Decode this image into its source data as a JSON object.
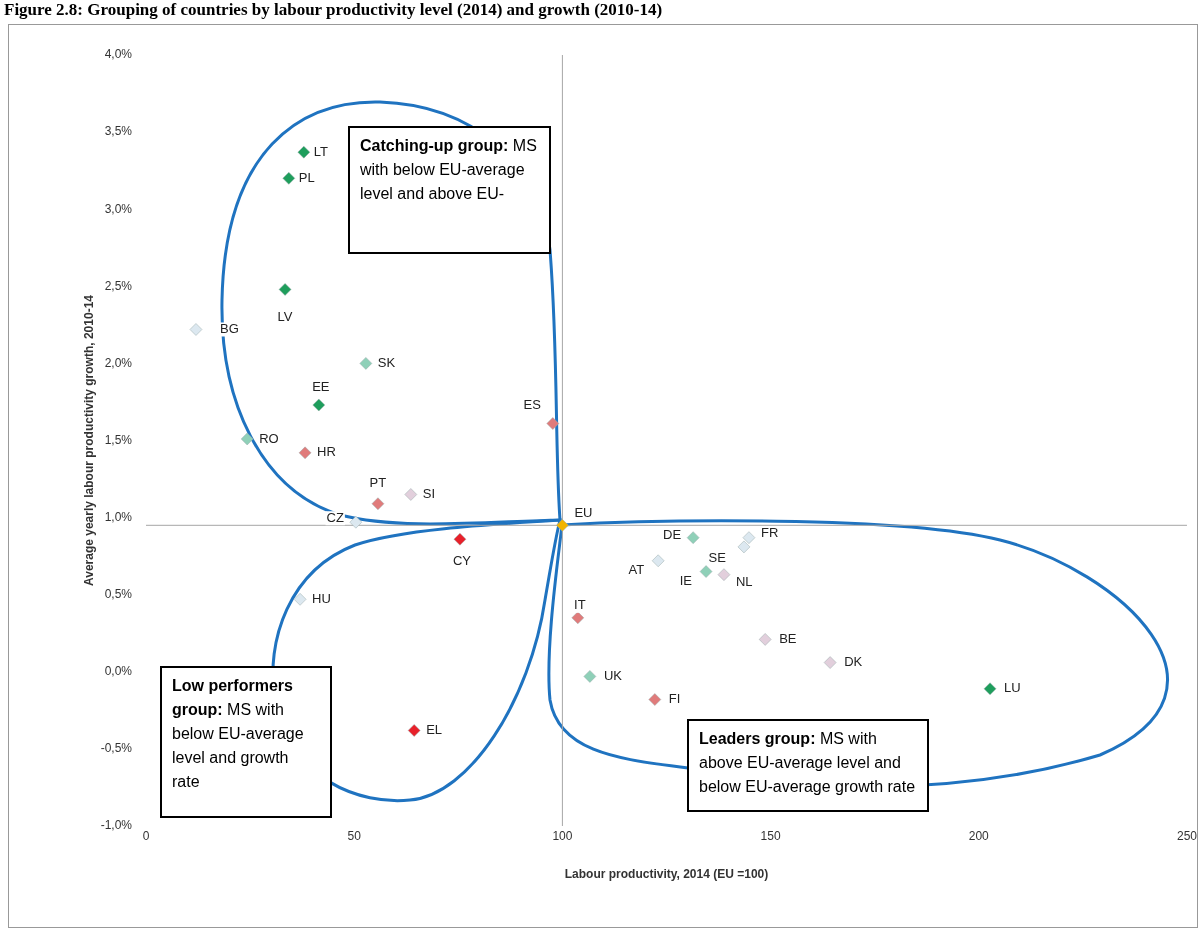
{
  "chart_data": {
    "type": "scatter",
    "title": "Figure 2.8: Grouping of countries by labour productivity level (2014) and growth (2010-14)",
    "xlabel": "Labour productivity, 2014 (EU =100)",
    "ylabel": "Average yearly labour productivity growth, 2010-14",
    "x": [
      37.9,
      34.3,
      33.4,
      12.0,
      52.8,
      41.5,
      24.3,
      38.2,
      97.7,
      55.7,
      63.6,
      50.4,
      100,
      75.4,
      37.0,
      64.4,
      131.4,
      144.8,
      143.6,
      123.0,
      134.5,
      138.8,
      103.7,
      148.7,
      164.3,
      106.6,
      122.2,
      202.7
    ],
    "values": [
      3.37,
      3.2,
      2.48,
      2.22,
      2.0,
      1.73,
      1.51,
      1.42,
      1.61,
      1.09,
      1.15,
      0.97,
      0.95,
      0.86,
      0.47,
      -0.38,
      0.87,
      0.87,
      0.81,
      0.72,
      0.65,
      0.63,
      0.35,
      0.21,
      0.06,
      -0.03,
      -0.18,
      -0.11
    ],
    "colors": [
      "#1e9e5c",
      "#1e9e5c",
      "#1e9e5c",
      "#dce8f0",
      "#8fd0b8",
      "#1e9e5c",
      "#8fd0b8",
      "#e07b7b",
      "#e07b7b",
      "#e07b7b",
      "#e2cfdc",
      "#dce8f0",
      "#f2b400",
      "#e8202a",
      "#dce8f0",
      "#e8202a",
      "#8fd0b8",
      "#dce8f0",
      "#dce8f0",
      "#dce8f0",
      "#8fd0b8",
      "#e2cfdc",
      "#e07b7b",
      "#e2cfdc",
      "#e2cfdc",
      "#8fd0b8",
      "#e07b7b",
      "#1e9e5c"
    ],
    "marker": "diamond",
    "legend": false,
    "grid": false,
    "xlim": [
      0,
      250
    ],
    "xticks": [
      0,
      50,
      100,
      150,
      200,
      250
    ],
    "ylim": [
      -1,
      4
    ],
    "yticks": [
      {
        "value": -1,
        "label": "-1,0%"
      },
      {
        "value": -0.5,
        "label": "-0,5%"
      },
      {
        "value": 0,
        "label": "0,0%"
      },
      {
        "value": 0.5,
        "label": "0,5%"
      },
      {
        "value": 1,
        "label": "1,0%"
      },
      {
        "value": 1.5,
        "label": "1,5%"
      },
      {
        "value": 2,
        "label": "2,0%"
      },
      {
        "value": 2.5,
        "label": "2,5%"
      },
      {
        "value": 3,
        "label": "3,0%"
      },
      {
        "value": 3.5,
        "label": "3,5%"
      },
      {
        "value": 4,
        "label": "4,0%"
      }
    ],
    "ref_lines": [
      {
        "axis": "y",
        "value": 0.95,
        "color": "#a6a6a6"
      },
      {
        "axis": "x",
        "value": 100,
        "color": "#a6a6a6"
      }
    ],
    "annotations": [
      {
        "text": "LT",
        "x": 37.9,
        "y": 3.37
      },
      {
        "text": "PL",
        "x": 34.3,
        "y": 3.2
      },
      {
        "text": "LV",
        "x": 33.4,
        "y": 2.48
      },
      {
        "text": "BG",
        "x": 12.0,
        "y": 2.22
      },
      {
        "text": "SK",
        "x": 52.8,
        "y": 2.0
      },
      {
        "text": "EE",
        "x": 41.5,
        "y": 1.73
      },
      {
        "text": "RO",
        "x": 24.3,
        "y": 1.51
      },
      {
        "text": "HR",
        "x": 38.2,
        "y": 1.42
      },
      {
        "text": "ES",
        "x": 97.7,
        "y": 1.61
      },
      {
        "text": "PT",
        "x": 55.7,
        "y": 1.09
      },
      {
        "text": "SI",
        "x": 63.6,
        "y": 1.15
      },
      {
        "text": "CZ",
        "x": 50.4,
        "y": 0.97
      },
      {
        "text": "EU",
        "x": 100,
        "y": 0.95
      },
      {
        "text": "CY",
        "x": 75.4,
        "y": 0.86
      },
      {
        "text": "HU",
        "x": 37.0,
        "y": 0.47
      },
      {
        "text": "EL",
        "x": 64.4,
        "y": -0.38
      },
      {
        "text": "DE",
        "x": 131.4,
        "y": 0.87
      },
      {
        "text": "FR",
        "x": 144.8,
        "y": 0.87
      },
      {
        "text": "SE",
        "x": 143.6,
        "y": 0.81
      },
      {
        "text": "AT",
        "x": 123.0,
        "y": 0.72
      },
      {
        "text": "IE",
        "x": 134.5,
        "y": 0.65
      },
      {
        "text": "NL",
        "x": 138.8,
        "y": 0.63
      },
      {
        "text": "IT",
        "x": 103.7,
        "y": 0.35
      },
      {
        "text": "BE",
        "x": 148.7,
        "y": 0.21
      },
      {
        "text": "DK",
        "x": 164.3,
        "y": 0.06
      },
      {
        "text": "UK",
        "x": 106.6,
        "y": -0.03
      },
      {
        "text": "FI",
        "x": 122.2,
        "y": -0.18
      },
      {
        "text": "LU",
        "x": 202.7,
        "y": -0.11
      },
      "Catching-up group: MS with below EU-average level and above EU-",
      "Low performers group: MS with below EU-average level and growth rate",
      "Leaders group: MS with above EU-average level and below EU-average growth rate"
    ]
  }
}
